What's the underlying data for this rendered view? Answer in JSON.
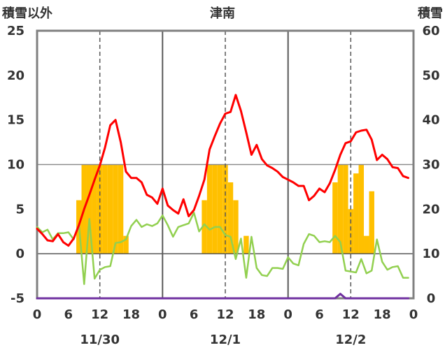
{
  "chart_data": {
    "type": "line",
    "title": "津南",
    "ylabel": "積雪以外",
    "y2label": "積雪",
    "ylim": [
      -5,
      25
    ],
    "y2lim": [
      0,
      60
    ],
    "yticks": [
      25,
      20,
      15,
      10,
      5,
      0,
      -5
    ],
    "y2ticks": [
      60,
      50,
      40,
      30,
      20,
      10,
      0
    ],
    "dates": [
      "11/30",
      "12/1",
      "12/2"
    ],
    "xticks": [
      "0",
      "6",
      "12",
      "18",
      "0",
      "6",
      "12",
      "18",
      "0",
      "6",
      "12",
      "18",
      "0"
    ],
    "hours": [
      0,
      1,
      2,
      3,
      4,
      5,
      6,
      7,
      8,
      9,
      10,
      11,
      12,
      13,
      14,
      15,
      16,
      17,
      18,
      19,
      20,
      21,
      22,
      23
    ],
    "grid": {
      "horizontal": [
        10,
        0
      ],
      "day_lines": "solid",
      "noon_lines": "dashed"
    },
    "series": [
      {
        "type": "bar",
        "axis": "left",
        "color": "#ffc000",
        "values": [
          [
            0,
            0,
            0,
            0,
            0,
            0,
            0,
            0,
            6,
            10,
            10,
            10,
            10,
            10,
            10,
            10,
            10,
            2,
            0,
            0,
            0,
            0,
            0,
            0
          ],
          [
            0,
            0,
            0,
            0,
            0,
            0,
            0,
            0,
            6,
            10,
            10,
            10,
            10,
            8,
            6,
            0,
            2,
            0,
            0,
            0,
            0,
            0,
            0,
            0
          ],
          [
            0,
            0,
            0,
            0,
            0,
            0,
            0,
            0,
            0,
            8,
            10,
            10,
            5,
            9,
            10,
            2,
            7,
            0,
            0,
            0,
            0,
            0,
            0,
            0
          ]
        ]
      },
      {
        "type": "line",
        "axis": "left",
        "color": "#92d050",
        "values": [
          [
            3.0,
            2.4,
            2.7,
            1.6,
            2.3,
            2.3,
            2.4,
            1.6,
            3.3,
            -3.4,
            3.9,
            -2.8,
            -1.8,
            -1.5,
            -1.4,
            1.2,
            1.3,
            1.6,
            3.1,
            3.8,
            3.0,
            3.3,
            3.1,
            3.4
          ],
          [
            4.3,
            3.2,
            1.9,
            3.0,
            3.2,
            3.4,
            4.6,
            2.5,
            3.3,
            2.7,
            3.0,
            3.0,
            2.1,
            1.9,
            -0.6,
            1.7,
            -2.7,
            1.9,
            -1.6,
            -2.4,
            -2.5,
            -1.6,
            -1.6,
            -1.7
          ],
          [
            -0.4,
            -1.1,
            -1.3,
            1.1,
            2.2,
            2.0,
            1.3,
            1.4,
            1.3,
            2.0,
            1.3,
            -1.9,
            -2.0,
            -2.1,
            -0.6,
            -2.2,
            -1.9,
            1.6,
            -0.9,
            -1.8,
            -1.5,
            -1.4,
            -2.7,
            -2.7
          ]
        ]
      },
      {
        "type": "line",
        "axis": "left",
        "color": "#ff0000",
        "values": [
          [
            2.8,
            2.2,
            1.5,
            1.4,
            2.2,
            1.3,
            0.9,
            1.7,
            3.2,
            5.0,
            6.6,
            8.3,
            9.9,
            11.9,
            14.4,
            15.0,
            12.5,
            9.2,
            8.5,
            8.5,
            8.0,
            6.6,
            6.3,
            5.6
          ],
          [
            7.3,
            5.4,
            4.9,
            4.5,
            6.1,
            4.2,
            4.9,
            6.5,
            8.3,
            11.7,
            13.2,
            14.6,
            15.7,
            15.9,
            17.8,
            16.0,
            13.6,
            11.1,
            12.2,
            10.6,
            9.9,
            9.6,
            9.2,
            8.6
          ],
          [
            8.3,
            8.0,
            7.6,
            7.6,
            6.0,
            6.5,
            7.3,
            6.9,
            7.9,
            9.4,
            11.1,
            12.4,
            12.6,
            13.6,
            13.8,
            13.9,
            12.8,
            10.5,
            11.1,
            10.6,
            9.7,
            9.6,
            8.7,
            8.5
          ]
        ]
      },
      {
        "type": "line",
        "axis": "right",
        "color": "#7030a0",
        "values": [
          [
            0,
            0,
            0,
            0,
            0,
            0,
            0,
            0,
            0,
            0,
            0,
            0,
            0,
            0,
            0,
            0,
            0,
            0,
            0,
            0,
            0,
            0,
            0,
            0
          ],
          [
            0,
            0,
            0,
            0,
            0,
            0,
            0,
            0,
            0,
            0,
            0,
            0,
            0,
            0,
            0,
            0,
            0,
            0,
            0,
            0,
            0,
            0,
            0,
            0
          ],
          [
            0,
            0,
            0,
            0,
            0,
            0,
            0,
            0,
            0,
            0,
            1,
            0,
            0,
            0,
            0,
            0,
            0,
            0,
            0,
            0,
            0,
            0,
            0,
            0
          ]
        ]
      }
    ]
  }
}
